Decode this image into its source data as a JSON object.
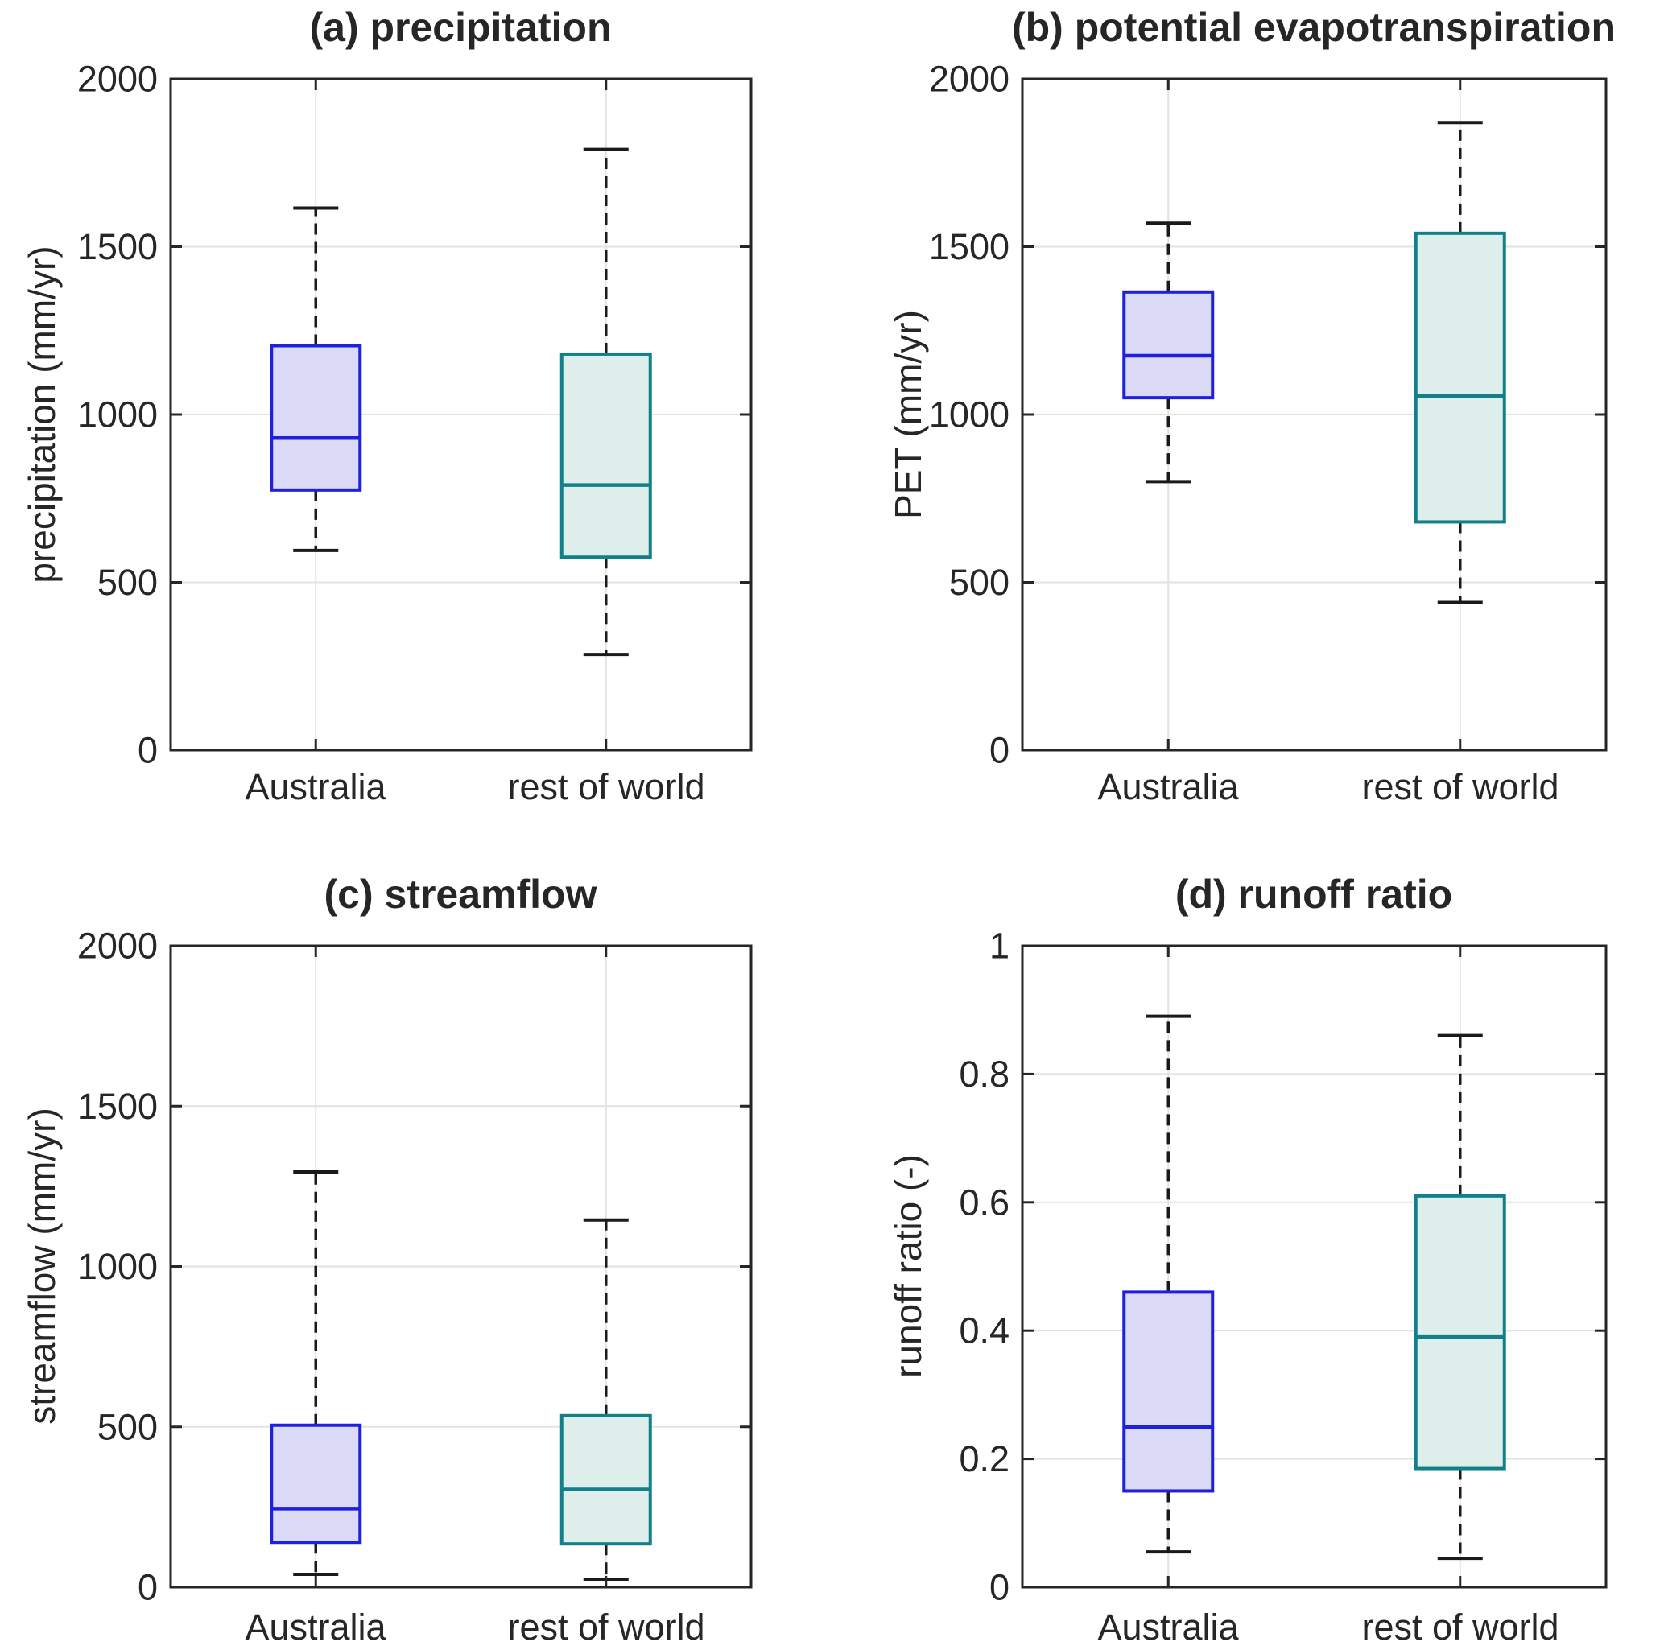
{
  "figure": {
    "background": "#ffffff",
    "text_color": "#262626",
    "axis_color": "#262626",
    "grid_color": "#e2e2e2",
    "whisker_color": "#1a1a1a"
  },
  "series_styles": [
    {
      "name": "Australia",
      "edge": "#1f1fe0",
      "fill": "#dadaf7"
    },
    {
      "name": "rest of world",
      "edge": "#12808a",
      "fill": "#ddeeeb"
    }
  ],
  "chart_data": [
    {
      "type": "box",
      "panel": "a",
      "title": "(a) precipitation",
      "ylabel": "precipitation (mm/yr)",
      "ylim": [
        0,
        2000
      ],
      "yticks": [
        0,
        500,
        1000,
        1500,
        2000
      ],
      "ytick_labels": [
        "0",
        "500",
        "1000",
        "1500",
        "2000"
      ],
      "grid": true,
      "categories": [
        "Australia",
        "rest of world"
      ],
      "boxes": [
        {
          "category": "Australia",
          "whisker_low": 595,
          "q1": 775,
          "median": 930,
          "q3": 1205,
          "whisker_high": 1615
        },
        {
          "category": "rest of world",
          "whisker_low": 285,
          "q1": 575,
          "median": 790,
          "q3": 1180,
          "whisker_high": 1790
        }
      ]
    },
    {
      "type": "box",
      "panel": "b",
      "title": "(b) potential evapotranspiration",
      "ylabel": "PET (mm/yr)",
      "ylim": [
        0,
        2000
      ],
      "yticks": [
        0,
        500,
        1000,
        1500,
        2000
      ],
      "ytick_labels": [
        "0",
        "500",
        "1000",
        "1500",
        "2000"
      ],
      "grid": true,
      "categories": [
        "Australia",
        "rest of world"
      ],
      "boxes": [
        {
          "category": "Australia",
          "whisker_low": 800,
          "q1": 1050,
          "median": 1175,
          "q3": 1365,
          "whisker_high": 1570
        },
        {
          "category": "rest of world",
          "whisker_low": 440,
          "q1": 680,
          "median": 1055,
          "q3": 1540,
          "whisker_high": 1870
        }
      ]
    },
    {
      "type": "box",
      "panel": "c",
      "title": "(c) streamflow",
      "ylabel": "streamflow (mm/yr)",
      "ylim": [
        0,
        2000
      ],
      "yticks": [
        0,
        500,
        1000,
        1500,
        2000
      ],
      "ytick_labels": [
        "0",
        "500",
        "1000",
        "1500",
        "2000"
      ],
      "grid": true,
      "categories": [
        "Australia",
        "rest of world"
      ],
      "boxes": [
        {
          "category": "Australia",
          "whisker_low": 40,
          "q1": 140,
          "median": 245,
          "q3": 505,
          "whisker_high": 1295
        },
        {
          "category": "rest of world",
          "whisker_low": 25,
          "q1": 135,
          "median": 305,
          "q3": 535,
          "whisker_high": 1145
        }
      ]
    },
    {
      "type": "box",
      "panel": "d",
      "title": "(d) runoff ratio",
      "ylabel": "runoff ratio (-)",
      "ylim": [
        0,
        1
      ],
      "yticks": [
        0,
        0.2,
        0.4,
        0.6,
        0.8,
        1
      ],
      "ytick_labels": [
        "0",
        "0.2",
        "0.4",
        "0.6",
        "0.8",
        "1"
      ],
      "grid": true,
      "categories": [
        "Australia",
        "rest of world"
      ],
      "boxes": [
        {
          "category": "Australia",
          "whisker_low": 0.055,
          "q1": 0.15,
          "median": 0.25,
          "q3": 0.46,
          "whisker_high": 0.89
        },
        {
          "category": "rest of world",
          "whisker_low": 0.045,
          "q1": 0.185,
          "median": 0.39,
          "q3": 0.61,
          "whisker_high": 0.86
        }
      ]
    }
  ]
}
